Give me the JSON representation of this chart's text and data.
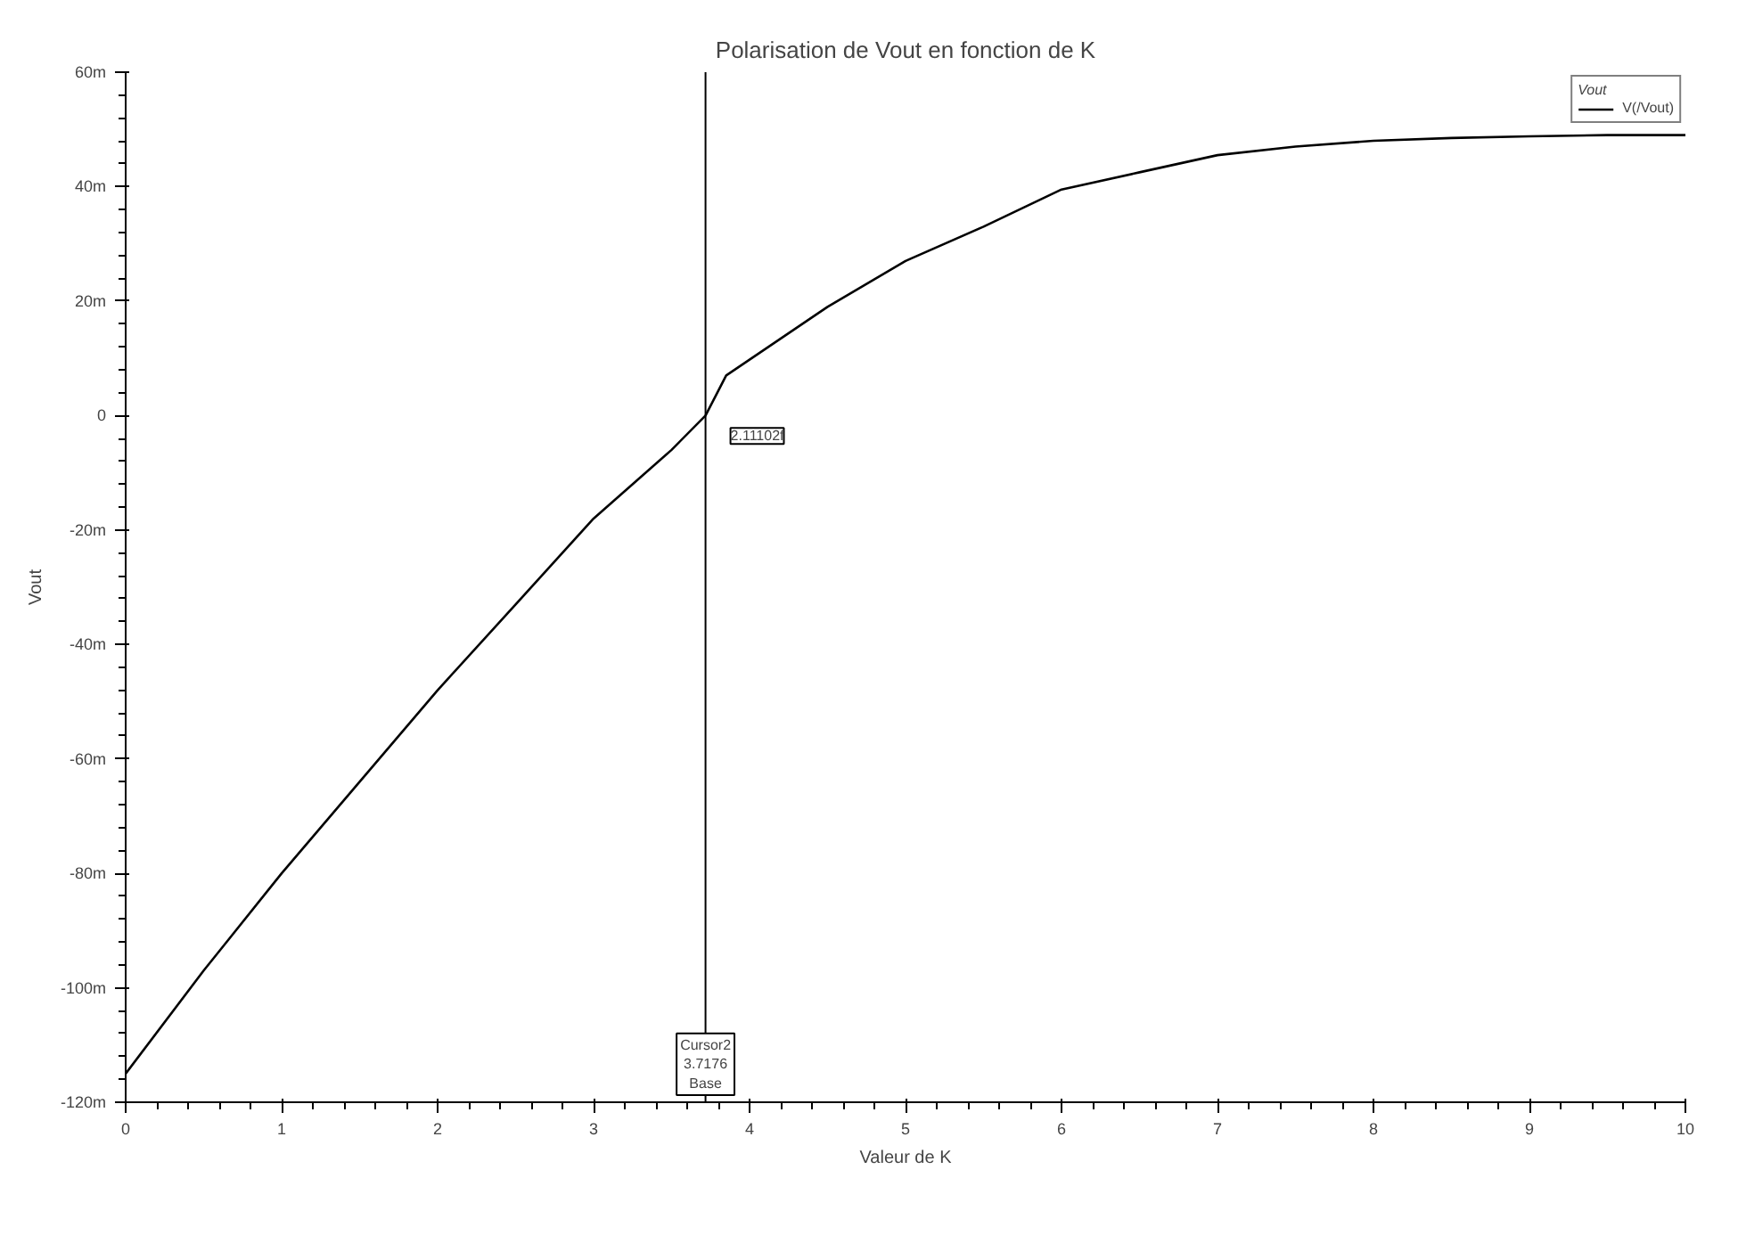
{
  "chart_data": {
    "type": "line",
    "title": "Polarisation de Vout en fonction de K",
    "xlabel": "Valeur de K",
    "ylabel": "Vout",
    "legend_title": "Vout",
    "x": [
      0,
      0.5,
      1,
      1.5,
      2,
      2.5,
      3,
      3.5,
      3.7176,
      3.85,
      4.5,
      5,
      5.5,
      6,
      6.5,
      7,
      7.5,
      8,
      8.5,
      9,
      9.5,
      10
    ],
    "series": [
      {
        "name": "V(/Vout)",
        "color": "#000000",
        "values": [
          -115,
          -97,
          -80,
          -64,
          -48,
          -33,
          -18,
          -6,
          0,
          7,
          19,
          27,
          33,
          39.5,
          42.5,
          45.5,
          47,
          48,
          48.5,
          48.8,
          49,
          49
        ]
      }
    ],
    "xlim": [
      0,
      10
    ],
    "ylim": [
      -120,
      60
    ],
    "xticks": [
      0,
      1,
      2,
      3,
      4,
      5,
      6,
      7,
      8,
      9,
      10
    ],
    "yticks": [
      {
        "value": -120,
        "label": "-120m"
      },
      {
        "value": -100,
        "label": "-100m"
      },
      {
        "value": -80,
        "label": "-80m"
      },
      {
        "value": -60,
        "label": "-60m"
      },
      {
        "value": -40,
        "label": "-40m"
      },
      {
        "value": -20,
        "label": "-20m"
      },
      {
        "value": 0,
        "label": "0"
      },
      {
        "value": 20,
        "label": "20m"
      },
      {
        "value": 40,
        "label": "40m"
      },
      {
        "value": 60,
        "label": "60m"
      }
    ],
    "ref_lines": [
      {
        "axis": "x",
        "value": 3.7176,
        "label": "Cursor2\n3.7176\nBase",
        "color": "#000000"
      }
    ],
    "annotations": [
      {
        "text": "2.11102f",
        "x": 3.7176,
        "y": 0
      }
    ],
    "grid": false,
    "legend": "top right",
    "marker": "none",
    "line_style": "solid"
  }
}
